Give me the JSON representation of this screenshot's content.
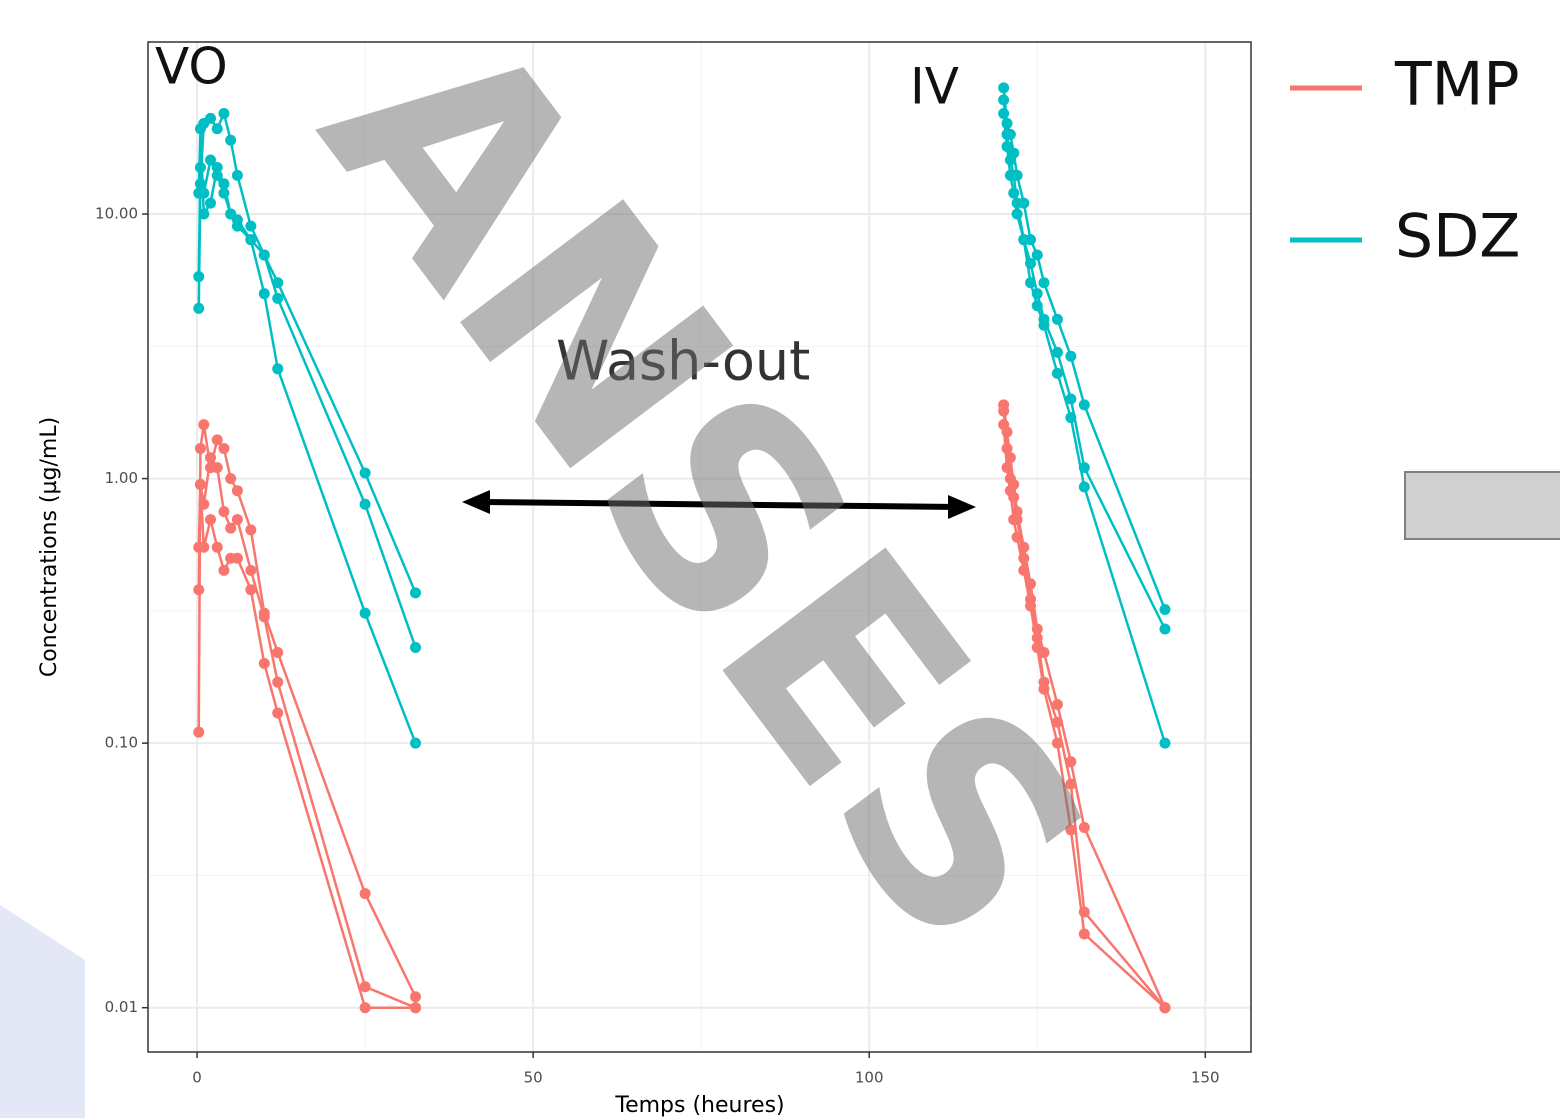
{
  "chart_data": {
    "type": "line",
    "log_y": true,
    "grid": true,
    "markers": true,
    "x_label": "Temps (heures)",
    "y_label": "Concentrations (µg/mL)",
    "annotations": [
      "VO",
      "IV",
      "Wash-out"
    ],
    "watermark": "ANSES",
    "xlim": [
      -7.3,
      156.8
    ],
    "xticks": [
      0,
      50,
      100,
      150
    ],
    "ylim": [
      0.0068,
      44.7
    ],
    "yticks": [
      {
        "value": 0.01,
        "label": "0.01"
      },
      {
        "value": 0.1,
        "label": "0.10"
      },
      {
        "value": 1,
        "label": "1.00"
      },
      {
        "value": 10,
        "label": "10.00"
      }
    ],
    "series": [
      {
        "name": "TMP",
        "color": "#f8766d",
        "subjects": [
          {
            "x": [
              0.25,
              0.5,
              1,
              2,
              3,
              4,
              5,
              6,
              8,
              10,
              12,
              25,
              32.5
            ],
            "values": [
              0.11,
              1.3,
              1.6,
              1.1,
              1.4,
              1.3,
              1.0,
              0.9,
              0.64,
              0.31,
              0.22,
              0.027,
              0.011
            ]
          },
          {
            "x": [
              0.25,
              0.5,
              1,
              2,
              3,
              4,
              5,
              6,
              8,
              10,
              12,
              25,
              32.5
            ],
            "values": [
              0.38,
              0.95,
              0.8,
              1.2,
              1.1,
              0.75,
              0.65,
              0.7,
              0.45,
              0.3,
              0.17,
              0.012,
              0.01
            ]
          },
          {
            "x": [
              0.25,
              0.5,
              1,
              2,
              3,
              4,
              5,
              6,
              8,
              10,
              12,
              25,
              32.5
            ],
            "values": [
              0.55,
              0.95,
              0.55,
              0.7,
              0.55,
              0.45,
              0.5,
              0.5,
              0.38,
              0.2,
              0.13,
              0.01,
              0.01
            ]
          },
          {
            "x": [
              120,
              120.5,
              121,
              121.5,
              122,
              123,
              124,
              125,
              126,
              128,
              130,
              132,
              144
            ],
            "values": [
              1.9,
              1.5,
              1.2,
              0.95,
              0.75,
              0.55,
              0.4,
              0.27,
              0.22,
              0.14,
              0.085,
              0.048,
              0.01
            ]
          },
          {
            "x": [
              120,
              120.5,
              121,
              121.5,
              122,
              123,
              124,
              125,
              126,
              128,
              130,
              132,
              144
            ],
            "values": [
              1.8,
              1.3,
              1.0,
              0.85,
              0.7,
              0.5,
              0.35,
              0.25,
              0.17,
              0.12,
              0.07,
              0.023,
              0.01
            ]
          },
          {
            "x": [
              120,
              120.5,
              121,
              121.5,
              122,
              123,
              124,
              125,
              126,
              128,
              130,
              132,
              144
            ],
            "values": [
              1.6,
              1.1,
              0.9,
              0.7,
              0.6,
              0.45,
              0.33,
              0.23,
              0.16,
              0.1,
              0.047,
              0.019,
              0.01
            ]
          }
        ]
      },
      {
        "name": "SDZ",
        "color": "#00bfc4",
        "subjects": [
          {
            "x": [
              0.25,
              0.5,
              1,
              2,
              3,
              4,
              5,
              6,
              8,
              10,
              12,
              25,
              32.5
            ],
            "values": [
              4.4,
              13,
              22,
              23,
              21,
              24,
              19,
              14,
              9,
              7,
              5.5,
              1.05,
              0.37
            ]
          },
          {
            "x": [
              0.25,
              0.5,
              1,
              2,
              3,
              4,
              5,
              6,
              8,
              10,
              12,
              25,
              32.5
            ],
            "values": [
              5.8,
              15,
              12,
              16,
              14,
              12,
              10,
              9,
              8,
              7,
              4.8,
              0.8,
              0.23
            ]
          },
          {
            "x": [
              0.25,
              0.5,
              1,
              2,
              3,
              4,
              5,
              6,
              8,
              10,
              12,
              25,
              32.5
            ],
            "values": [
              12,
              21,
              10,
              11,
              15,
              13,
              10,
              9.5,
              8,
              5,
              2.6,
              0.31,
              0.1
            ]
          },
          {
            "x": [
              120,
              120.5,
              121,
              121.5,
              122,
              123,
              124,
              125,
              126,
              128,
              130,
              132,
              144
            ],
            "values": [
              30,
              22,
              20,
              17,
              14,
              11,
              8,
              7,
              5.5,
              4,
              2.9,
              1.9,
              0.32
            ]
          },
          {
            "x": [
              120,
              120.5,
              121,
              121.5,
              122,
              123,
              124,
              125,
              126,
              128,
              130,
              132,
              144
            ],
            "values": [
              27,
              20,
              16,
              14,
              11,
              8,
              6.5,
              5,
              4,
              3,
              2,
              1.1,
              0.27
            ]
          },
          {
            "x": [
              120,
              120.5,
              121,
              121.5,
              122,
              123,
              124,
              125,
              126,
              128,
              130,
              132,
              144
            ],
            "values": [
              24,
              18,
              14,
              12,
              10,
              8,
              5.5,
              4.5,
              3.8,
              2.5,
              1.7,
              0.93,
              0.1
            ]
          }
        ]
      }
    ]
  }
}
